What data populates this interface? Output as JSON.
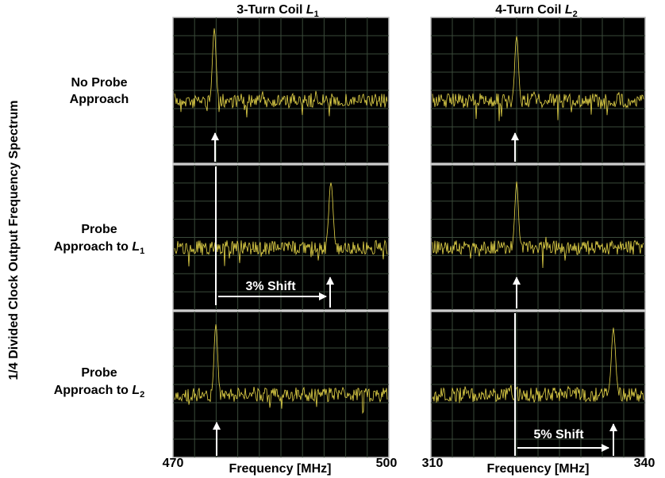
{
  "column_titles": [
    {
      "text": "3-Turn Coil ",
      "symbol": "L",
      "subscript": "1"
    },
    {
      "text": "4-Turn Coil ",
      "symbol": "L",
      "subscript": "2"
    }
  ],
  "row_labels": [
    {
      "lines": [
        "No Probe",
        "Approach"
      ]
    },
    {
      "lines": [
        "Probe",
        "Approach to "
      ],
      "symbol": "L",
      "subscript": "1"
    },
    {
      "lines": [
        "Probe",
        "Approach to "
      ],
      "symbol": "L",
      "subscript": "2"
    }
  ],
  "y_axis_label": "1/4 Divided Clock Output Frequency Spectrum",
  "x_axes": [
    {
      "min": "470",
      "max": "500",
      "label": "Frequency [MHz]"
    },
    {
      "min": "310",
      "max": "340",
      "label": "Frequency [MHz]"
    }
  ],
  "annotations": [
    "3% Shift",
    "5% Shift"
  ]
}
